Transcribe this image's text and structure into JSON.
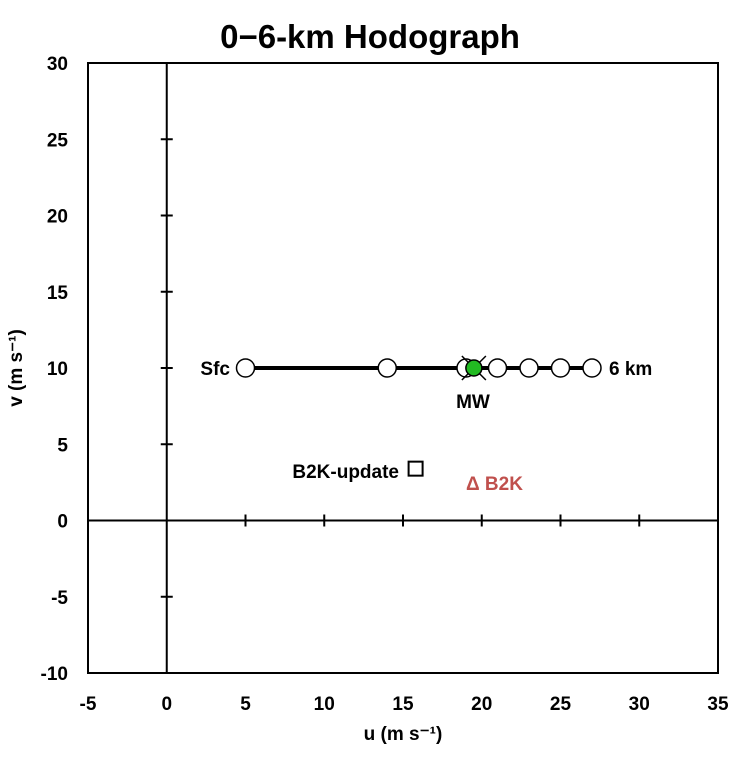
{
  "chart_data": {
    "type": "line",
    "title": "0−6-km Hodograph",
    "xlabel": "u (m s⁻¹)",
    "ylabel": "v (m s⁻¹)",
    "xlim": [
      -5,
      35
    ],
    "ylim": [
      -10,
      30
    ],
    "xticks": [
      -5,
      0,
      5,
      10,
      15,
      20,
      25,
      30,
      35
    ],
    "yticks": [
      -10,
      -5,
      0,
      5,
      10,
      15,
      20,
      25,
      30
    ],
    "grid": false,
    "series": [
      {
        "x": [
          5,
          14,
          19,
          21,
          23,
          25,
          27
        ],
        "y": [
          10,
          10,
          10,
          10,
          10,
          10,
          10
        ],
        "marker": "open-circle",
        "color": "#000000"
      }
    ],
    "points": [
      {
        "name": "MW",
        "x": 19.5,
        "y": 10,
        "marker": "filled-circle-x",
        "color": "#22bb22"
      },
      {
        "name": "B2K-update",
        "x": 15.8,
        "y": 3.4,
        "marker": "open-square",
        "color": "#000000"
      },
      {
        "name": "B2K",
        "x": 19.5,
        "y": 2.3,
        "marker": "open-triangle",
        "color": "#c0504d"
      }
    ],
    "annotations": [
      "Sfc",
      "6 km",
      "MW",
      "B2K-update",
      "Δ B2K"
    ]
  }
}
